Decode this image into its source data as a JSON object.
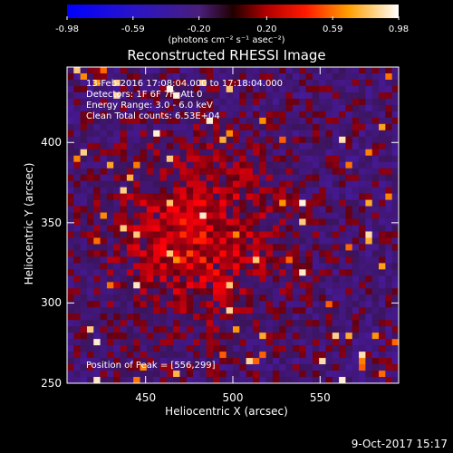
{
  "colorbar": {
    "ticks": [
      "-0.98",
      "-0.59",
      "-0.20",
      "0.20",
      "0.59",
      "0.98"
    ],
    "tick_values": [
      -0.98,
      -0.59,
      -0.2,
      0.2,
      0.59,
      0.98
    ],
    "units": "(photons cm⁻² s⁻¹ asec⁻²)"
  },
  "chart_data": {
    "type": "heatmap",
    "title": "Reconstructed RHESSI Image",
    "xlabel": "Heliocentric X (arcsec)",
    "ylabel": "Heliocentric Y (arcsec)",
    "xlim": [
      405,
      595
    ],
    "ylim": [
      250,
      447
    ],
    "xticks": [
      450,
      500,
      550
    ],
    "yticks": [
      250,
      300,
      350,
      400
    ],
    "zlim": [
      -0.98,
      0.98
    ],
    "peak": [
      556,
      299
    ],
    "annotations": {
      "time": "13-Feb-2016 17:08:04.000 to 17:18:04.000",
      "detectors": "Detectors: 1F 6F 7F, Att 0",
      "energy": "Energy Range: 3.0 - 6.0 keV",
      "clean": "Clean     Total counts: 6.53E+04",
      "peak": "Position of Peak = [556,299]"
    }
  },
  "footer": {
    "date": "9-Oct-2017 15:17"
  }
}
